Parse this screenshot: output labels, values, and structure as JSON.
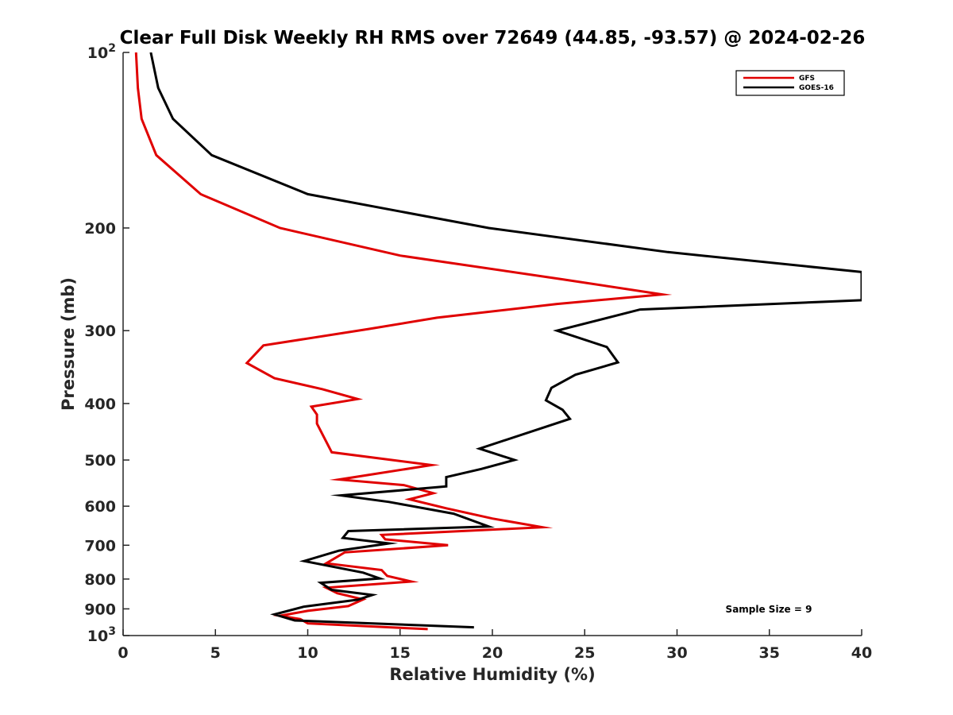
{
  "chart_data": {
    "type": "line",
    "title": "Clear Full Disk Weekly RH RMS over 72649 (44.85, -93.57) @ 2024-02-26",
    "xlabel": "Relative Humidity (%)",
    "ylabel": "Pressure (mb)",
    "xlim": [
      0,
      40
    ],
    "ylim": [
      100,
      1000
    ],
    "yscale": "log",
    "y_reversed": true,
    "grid": false,
    "legend_position": "top-right",
    "x_ticks": [
      "0",
      "5",
      "10",
      "15",
      "20",
      "25",
      "30",
      "35",
      "40"
    ],
    "y_ticks": [
      {
        "value": 100,
        "base": "10",
        "exp": "2"
      },
      {
        "value": 200,
        "label": "200"
      },
      {
        "value": 300,
        "label": "300"
      },
      {
        "value": 400,
        "label": "400"
      },
      {
        "value": 500,
        "label": "500"
      },
      {
        "value": 600,
        "label": "600"
      },
      {
        "value": 700,
        "label": "700"
      },
      {
        "value": 800,
        "label": "800"
      },
      {
        "value": 900,
        "label": "900"
      },
      {
        "value": 1000,
        "base": "10",
        "exp": "3"
      }
    ],
    "series": [
      {
        "name": "GFS",
        "color": "#e00000",
        "x": [
          0.7,
          0.8,
          1.0,
          1.8,
          4.2,
          8.5,
          15.0,
          23.8,
          29.2,
          23.5,
          17.0,
          13.3,
          7.6,
          6.7,
          8.2,
          10.8,
          12.7,
          10.2,
          10.5,
          10.5,
          11.3,
          16.7,
          11.7,
          15.2,
          16.8,
          15.5,
          17.5,
          20.0,
          22.7,
          14.0,
          14.2,
          17.6,
          12.0,
          11.0,
          14.0,
          14.3,
          15.6,
          11.0,
          11.6,
          13.0,
          12.2,
          10.0,
          8.5,
          9.6,
          10.0,
          16.5
        ],
        "y": [
          100,
          115,
          130,
          150,
          175,
          200,
          223,
          245,
          260,
          270,
          285,
          298,
          318,
          341,
          362,
          378,
          393,
          405,
          418,
          433,
          485,
          510,
          540,
          552,
          570,
          584,
          605,
          630,
          652,
          672,
          684,
          700,
          720,
          752,
          772,
          790,
          808,
          828,
          846,
          867,
          890,
          907,
          925,
          937,
          953,
          975
        ]
      },
      {
        "name": "GOES-16",
        "color": "#000000",
        "x": [
          1.5,
          1.9,
          2.7,
          4.8,
          10.0,
          19.8,
          29.5,
          40.0,
          40.0,
          28.0,
          23.5,
          26.2,
          26.8,
          24.5,
          23.2,
          22.9,
          23.8,
          24.2,
          19.3,
          21.2,
          19.4,
          17.5,
          17.5,
          11.8,
          14.4,
          17.9,
          19.8,
          12.2,
          11.9,
          14.4,
          11.7,
          9.8,
          13.0,
          13.9,
          10.7,
          11.3,
          13.5,
          12.7,
          9.8,
          8.2,
          9.3,
          19.0
        ],
        "y": [
          100,
          115,
          130,
          150,
          175,
          200,
          220,
          238,
          266,
          276,
          300,
          320,
          340,
          357,
          376,
          395,
          410,
          425,
          478,
          500,
          518,
          535,
          555,
          575,
          590,
          618,
          650,
          662,
          680,
          695,
          715,
          745,
          780,
          798,
          812,
          835,
          852,
          868,
          892,
          920,
          942,
          968
        ]
      }
    ],
    "annotation": "Sample Size = 9"
  }
}
